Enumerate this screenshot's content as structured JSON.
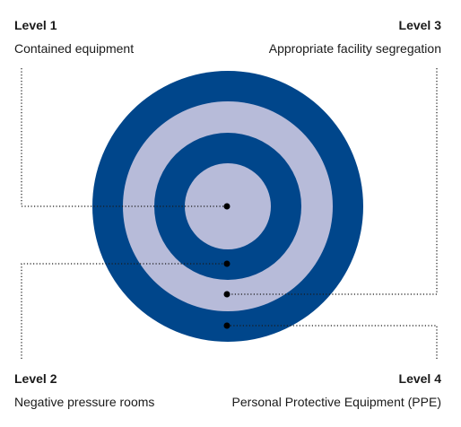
{
  "levels": [
    {
      "title": "Level 1",
      "description": "Contained equipment"
    },
    {
      "title": "Level 2",
      "description": "Negative pressure rooms"
    },
    {
      "title": "Level 3",
      "description": "Appropriate facility segregation"
    },
    {
      "title": "Level 4",
      "description": "Personal Protective Equipment (PPE)"
    }
  ],
  "colors": {
    "dark_ring": "#00468b",
    "light_ring": "#b7bbd9",
    "connector": "#1a1a1a"
  }
}
